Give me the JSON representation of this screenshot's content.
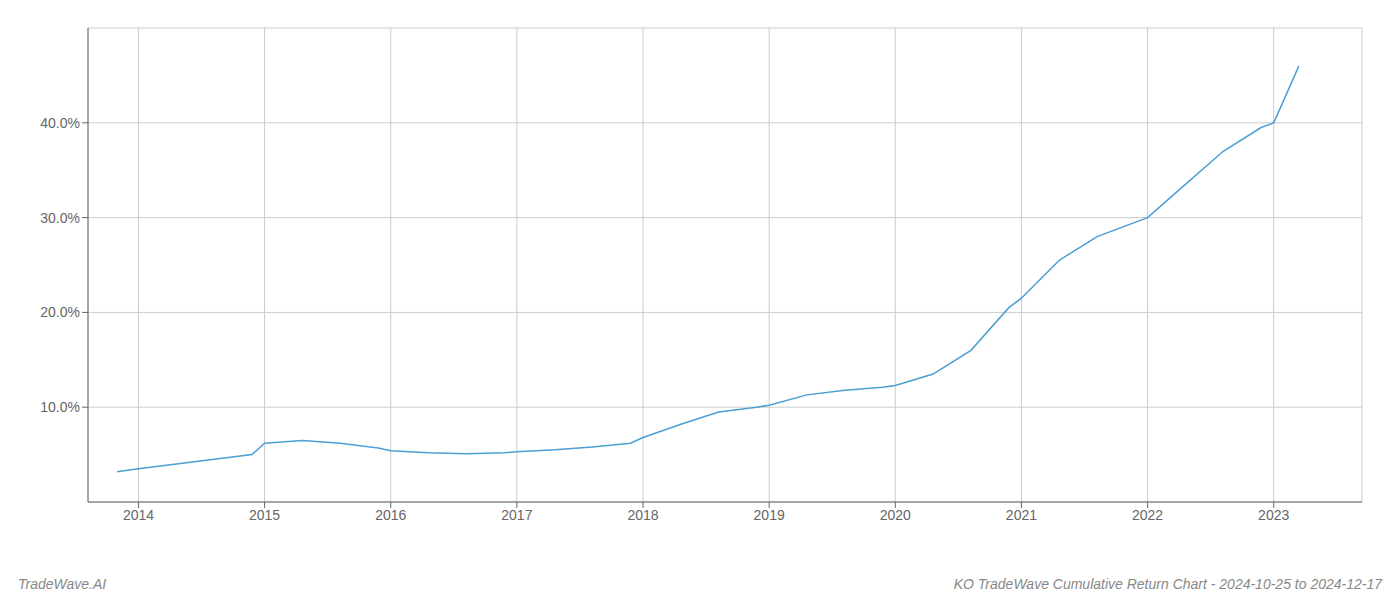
{
  "chart_data": {
    "type": "line",
    "title": "KO TradeWave Cumulative Return Chart - 2024-10-25 to 2024-12-17",
    "annotations": [
      "TradeWave.AI"
    ],
    "x": [
      2013.83,
      2014.0,
      2014.3,
      2014.6,
      2014.9,
      2015.0,
      2015.3,
      2015.6,
      2015.9,
      2016.0,
      2016.3,
      2016.6,
      2016.9,
      2017.0,
      2017.3,
      2017.6,
      2017.9,
      2018.0,
      2018.3,
      2018.6,
      2018.9,
      2019.0,
      2019.3,
      2019.6,
      2019.9,
      2020.0,
      2020.3,
      2020.6,
      2020.9,
      2021.0,
      2021.3,
      2021.6,
      2021.9,
      2022.0,
      2022.3,
      2022.6,
      2022.9,
      2023.0,
      2023.2
    ],
    "values": [
      3.2,
      3.5,
      4.0,
      4.5,
      5.0,
      6.2,
      6.5,
      6.2,
      5.7,
      5.4,
      5.2,
      5.1,
      5.2,
      5.3,
      5.5,
      5.8,
      6.2,
      6.8,
      8.2,
      9.5,
      10.0,
      10.2,
      11.3,
      11.8,
      12.1,
      12.3,
      13.5,
      16.0,
      20.5,
      21.5,
      25.5,
      28.0,
      29.5,
      30.0,
      33.5,
      37.0,
      39.5,
      40.0,
      46.0
    ],
    "color": "#4a9fd4",
    "xlim": [
      2013.6,
      2023.7
    ],
    "xticks": [
      2014,
      2015,
      2016,
      2017,
      2018,
      2019,
      2020,
      2021,
      2022,
      2023
    ],
    "ylim": [
      0,
      50
    ],
    "yticks": [
      {
        "value": 10,
        "label": "10.0%"
      },
      {
        "value": 20,
        "label": "20.0%"
      },
      {
        "value": 30,
        "label": "30.0%"
      },
      {
        "value": 40,
        "label": "40.0%"
      }
    ],
    "grid": true
  }
}
